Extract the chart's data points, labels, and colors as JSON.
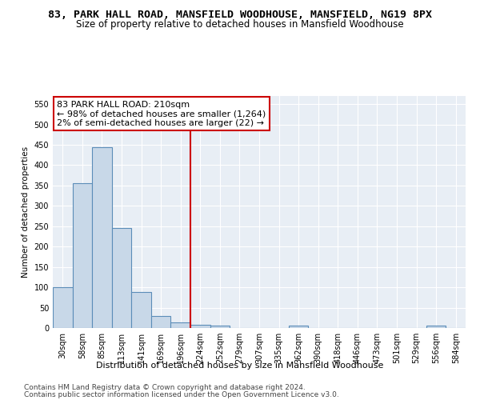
{
  "title1": "83, PARK HALL ROAD, MANSFIELD WOODHOUSE, MANSFIELD, NG19 8PX",
  "title2": "Size of property relative to detached houses in Mansfield Woodhouse",
  "xlabel": "Distribution of detached houses by size in Mansfield Woodhouse",
  "ylabel": "Number of detached properties",
  "footnote1": "Contains HM Land Registry data © Crown copyright and database right 2024.",
  "footnote2": "Contains public sector information licensed under the Open Government Licence v3.0.",
  "bin_labels": [
    "30sqm",
    "58sqm",
    "85sqm",
    "113sqm",
    "141sqm",
    "169sqm",
    "196sqm",
    "224sqm",
    "252sqm",
    "279sqm",
    "307sqm",
    "335sqm",
    "362sqm",
    "390sqm",
    "418sqm",
    "446sqm",
    "473sqm",
    "501sqm",
    "529sqm",
    "556sqm",
    "584sqm"
  ],
  "bar_values": [
    100,
    355,
    445,
    245,
    88,
    30,
    13,
    8,
    5,
    0,
    0,
    0,
    5,
    0,
    0,
    0,
    0,
    0,
    0,
    5,
    0
  ],
  "bar_color": "#c8d8e8",
  "bar_edge_color": "#5b8db8",
  "vline_x_index": 6.5,
  "annotation_title": "83 PARK HALL ROAD: 210sqm",
  "annotation_line1": "← 98% of detached houses are smaller (1,264)",
  "annotation_line2": "2% of semi-detached houses are larger (22) →",
  "vline_color": "#cc0000",
  "annotation_border_color": "#cc0000",
  "ylim": [
    0,
    570
  ],
  "yticks": [
    0,
    50,
    100,
    150,
    200,
    250,
    300,
    350,
    400,
    450,
    500,
    550
  ],
  "bg_color": "#e8eef5",
  "grid_color": "#ffffff",
  "title1_fontsize": 9.5,
  "title2_fontsize": 8.5,
  "xlabel_fontsize": 8,
  "ylabel_fontsize": 7.5,
  "tick_fontsize": 7,
  "annotation_fontsize": 8,
  "footnote_fontsize": 6.5
}
